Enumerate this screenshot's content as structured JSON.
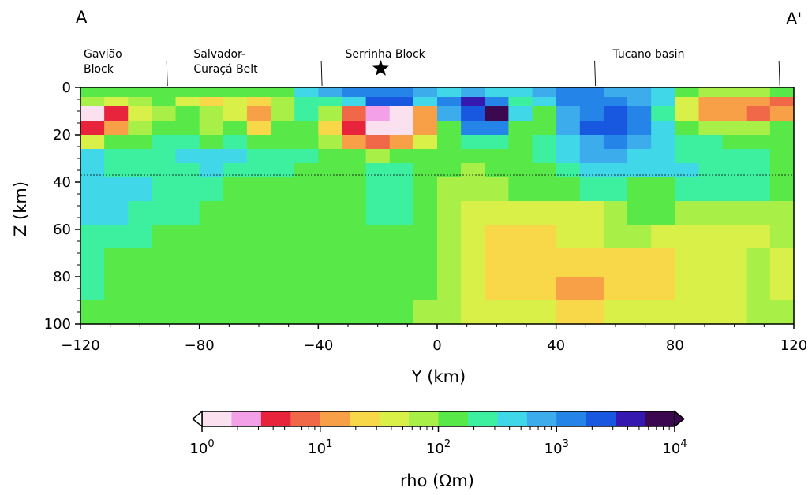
{
  "chart_data": {
    "type": "heatmap",
    "title": "",
    "section_start_label": "A",
    "section_end_label": "A'",
    "xlabel": "Y (km)",
    "ylabel": "Z (km)",
    "xlim": [
      -120,
      120
    ],
    "ylim": [
      0,
      100
    ],
    "y_inverted": true,
    "x_ticks": [
      -120,
      -80,
      -40,
      0,
      40,
      80,
      120
    ],
    "x_tick_labels": [
      "−120",
      "−80",
      "−40",
      "0",
      "40",
      "80",
      "120"
    ],
    "y_ticks": [
      0,
      20,
      40,
      60,
      80,
      100
    ],
    "y_tick_labels": [
      "0",
      "20",
      "40",
      "60",
      "80",
      "100"
    ],
    "reference_depth_km": 37,
    "geology_labels": [
      {
        "text": [
          "Gavião",
          "Block"
        ],
        "x_km": -120
      },
      {
        "text": [
          "Salvador-",
          "Curaçá Belt"
        ],
        "x_km": -83
      },
      {
        "text": [
          "Serrinha Block"
        ],
        "x_km": -32
      },
      {
        "text": [
          "Tucano basin"
        ],
        "x_km": 58
      }
    ],
    "boundary_ticks_km": [
      -91,
      -39,
      53,
      115
    ],
    "star_marker": {
      "x_km": -19,
      "depth_km": -6
    },
    "colorbar": {
      "label": "rho (Ωm)",
      "scale": "log",
      "min": 1,
      "max": 10000,
      "tick_exponents": [
        0,
        1,
        2,
        3,
        4
      ],
      "tick_base": "10",
      "colors": [
        "#fbe0f0",
        "#f4a0e8",
        "#e8243c",
        "#f06848",
        "#f8a048",
        "#f8d848",
        "#d8f048",
        "#a8f048",
        "#58e848",
        "#3cf0a0",
        "#40d8e8",
        "#3cacec",
        "#2484e8",
        "#1858e0",
        "#3418b0",
        "#3c0850"
      ]
    },
    "resistivity_grid_log10": {
      "x_edges": [
        -120,
        -112,
        -104,
        -96,
        -88,
        -80,
        -72,
        -64,
        -56,
        -48,
        -40,
        -32,
        -24,
        -16,
        -8,
        0,
        8,
        16,
        24,
        32,
        40,
        48,
        56,
        64,
        72,
        80,
        88,
        96,
        104,
        112,
        120
      ],
      "z_edges": [
        0,
        4,
        8,
        14,
        20,
        26,
        32,
        38,
        48,
        58,
        68,
        80,
        90,
        100
      ],
      "rows": [
        [
          2.0,
          2.0,
          2.0,
          2.0,
          2.2,
          2.2,
          2.1,
          2.0,
          2.2,
          2.6,
          2.8,
          3.0,
          3.1,
          3.2,
          2.9,
          2.6,
          2.9,
          2.5,
          2.6,
          2.8,
          3.0,
          3.0,
          2.9,
          2.8,
          2.6,
          2.2,
          1.8,
          1.9,
          1.9,
          2.0
        ],
        [
          1.8,
          1.6,
          1.9,
          2.1,
          1.7,
          1.4,
          1.6,
          1.3,
          1.9,
          2.4,
          2.4,
          2.6,
          3.4,
          3.3,
          2.6,
          3.2,
          3.7,
          3.0,
          2.4,
          2.6,
          3.0,
          3.1,
          3.0,
          2.8,
          2.6,
          1.5,
          1.0,
          1.2,
          1.0,
          0.9
        ],
        [
          0.2,
          0.6,
          1.5,
          1.9,
          2.0,
          1.9,
          1.7,
          1.2,
          1.8,
          2.3,
          1.8,
          0.9,
          0.3,
          0.2,
          1.0,
          2.8,
          3.3,
          3.9,
          2.6,
          2.2,
          2.9,
          3.2,
          3.3,
          3.0,
          2.4,
          1.7,
          1.2,
          1.0,
          0.9,
          1.1
        ],
        [
          0.6,
          1.2,
          1.9,
          2.0,
          2.1,
          1.9,
          2.2,
          1.4,
          2.0,
          2.2,
          1.3,
          0.7,
          0.0,
          0.1,
          1.1,
          2.2,
          3.0,
          3.0,
          2.0,
          2.1,
          2.9,
          3.3,
          3.4,
          3.2,
          2.5,
          2.0,
          1.9,
          1.8,
          1.8,
          2.0
        ],
        [
          1.7,
          2.0,
          2.1,
          2.3,
          2.4,
          2.2,
          2.4,
          2.1,
          2.1,
          2.2,
          1.8,
          1.2,
          0.8,
          1.0,
          1.6,
          2.2,
          2.3,
          2.4,
          2.1,
          2.3,
          2.7,
          2.9,
          3.1,
          2.9,
          2.6,
          2.4,
          2.3,
          2.2,
          2.2,
          2.2
        ],
        [
          2.6,
          2.3,
          2.3,
          2.4,
          2.5,
          2.5,
          2.5,
          2.4,
          2.3,
          2.3,
          2.2,
          2.0,
          1.9,
          2.0,
          2.1,
          2.2,
          2.2,
          2.2,
          2.2,
          2.3,
          2.6,
          2.8,
          2.9,
          2.7,
          2.5,
          2.4,
          2.4,
          2.3,
          2.3,
          2.2
        ],
        [
          2.6,
          2.4,
          2.4,
          2.4,
          2.4,
          2.5,
          2.4,
          2.3,
          2.3,
          2.2,
          2.2,
          2.2,
          2.3,
          2.3,
          2.2,
          2.0,
          1.9,
          2.0,
          2.1,
          2.2,
          2.4,
          2.6,
          2.6,
          2.6,
          2.5,
          2.5,
          2.4,
          2.3,
          2.3,
          2.2
        ],
        [
          2.6,
          2.5,
          2.5,
          2.4,
          2.3,
          2.3,
          2.2,
          2.2,
          2.2,
          2.1,
          2.1,
          2.2,
          2.4,
          2.3,
          2.2,
          1.8,
          1.8,
          1.9,
          2.0,
          2.1,
          2.2,
          2.3,
          2.3,
          2.2,
          2.2,
          2.4,
          2.4,
          2.4,
          2.3,
          2.2
        ],
        [
          2.5,
          2.5,
          2.4,
          2.3,
          2.3,
          2.2,
          2.2,
          2.2,
          2.1,
          2.1,
          2.1,
          2.2,
          2.3,
          2.3,
          2.1,
          1.8,
          1.7,
          1.5,
          1.6,
          1.7,
          1.7,
          1.7,
          1.8,
          2.0,
          2.0,
          1.9,
          1.9,
          1.8,
          1.8,
          1.9
        ],
        [
          2.4,
          2.4,
          2.3,
          2.2,
          2.2,
          2.2,
          2.1,
          2.1,
          2.1,
          2.1,
          2.1,
          2.1,
          2.2,
          2.2,
          2.1,
          1.9,
          1.6,
          1.4,
          1.4,
          1.4,
          1.6,
          1.7,
          1.9,
          1.9,
          1.7,
          1.6,
          1.6,
          1.6,
          1.7,
          1.8
        ],
        [
          2.4,
          2.2,
          2.2,
          2.1,
          2.1,
          2.1,
          2.1,
          2.1,
          2.1,
          2.1,
          2.1,
          2.1,
          2.1,
          2.2,
          2.0,
          1.8,
          1.5,
          1.4,
          1.4,
          1.4,
          1.4,
          1.4,
          1.4,
          1.4,
          1.4,
          1.5,
          1.6,
          1.7,
          1.8,
          1.6
        ],
        [
          2.3,
          2.1,
          2.1,
          2.0,
          2.0,
          2.0,
          2.0,
          2.0,
          2.0,
          2.0,
          2.0,
          2.0,
          2.1,
          2.1,
          2.0,
          1.8,
          1.6,
          1.4,
          1.4,
          1.4,
          1.2,
          1.2,
          1.4,
          1.4,
          1.4,
          1.5,
          1.6,
          1.7,
          1.8,
          1.5
        ],
        [
          2.2,
          2.1,
          2.0,
          2.0,
          2.0,
          2.0,
          2.0,
          2.0,
          2.0,
          2.0,
          2.0,
          2.0,
          2.0,
          2.0,
          1.9,
          1.8,
          1.6,
          1.5,
          1.5,
          1.5,
          1.4,
          1.4,
          1.5,
          1.6,
          1.6,
          1.6,
          1.7,
          1.7,
          1.8,
          1.8
        ]
      ]
    }
  }
}
